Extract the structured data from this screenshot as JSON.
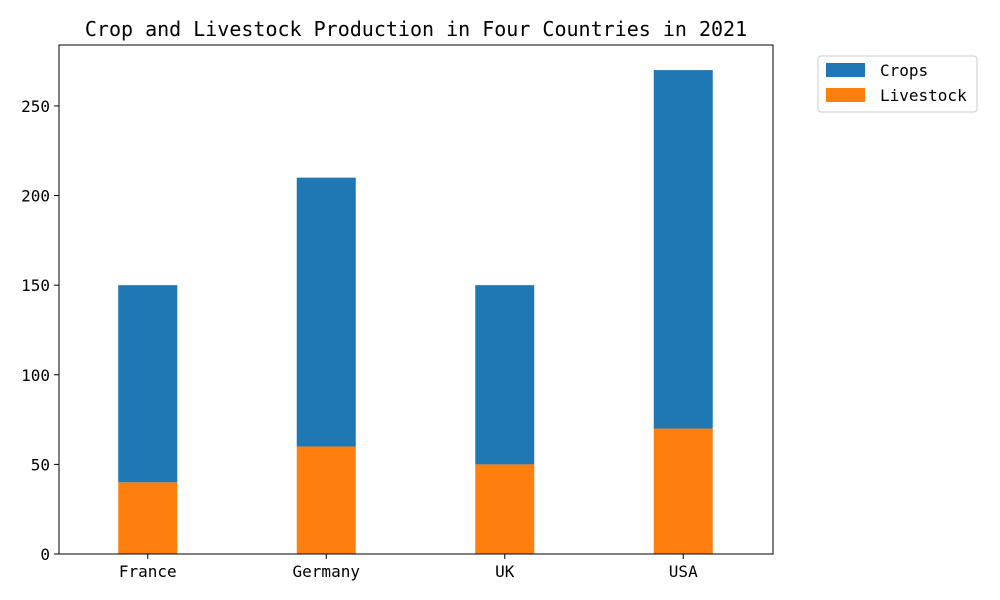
{
  "chart_data": {
    "type": "bar",
    "stacked": true,
    "title": "Crop and Livestock Production in Four Countries in 2021",
    "xlabel": "",
    "ylabel": "",
    "categories": [
      "France",
      "Germany",
      "UK",
      "USA"
    ],
    "series": [
      {
        "name": "Livestock",
        "values": [
          40,
          60,
          50,
          70
        ],
        "color": "#ff7f0e"
      },
      {
        "name": "Crops",
        "values": [
          110,
          150,
          100,
          200
        ],
        "color": "#1f77b4"
      }
    ],
    "ylim": [
      0,
      284
    ],
    "yticks": [
      0,
      50,
      100,
      150,
      200,
      250
    ],
    "grid": false,
    "legend": {
      "placement": "outside-top-right",
      "entries": [
        {
          "label": "Crops",
          "color": "#1f77b4"
        },
        {
          "label": "Livestock",
          "color": "#ff7f0e"
        }
      ]
    }
  }
}
